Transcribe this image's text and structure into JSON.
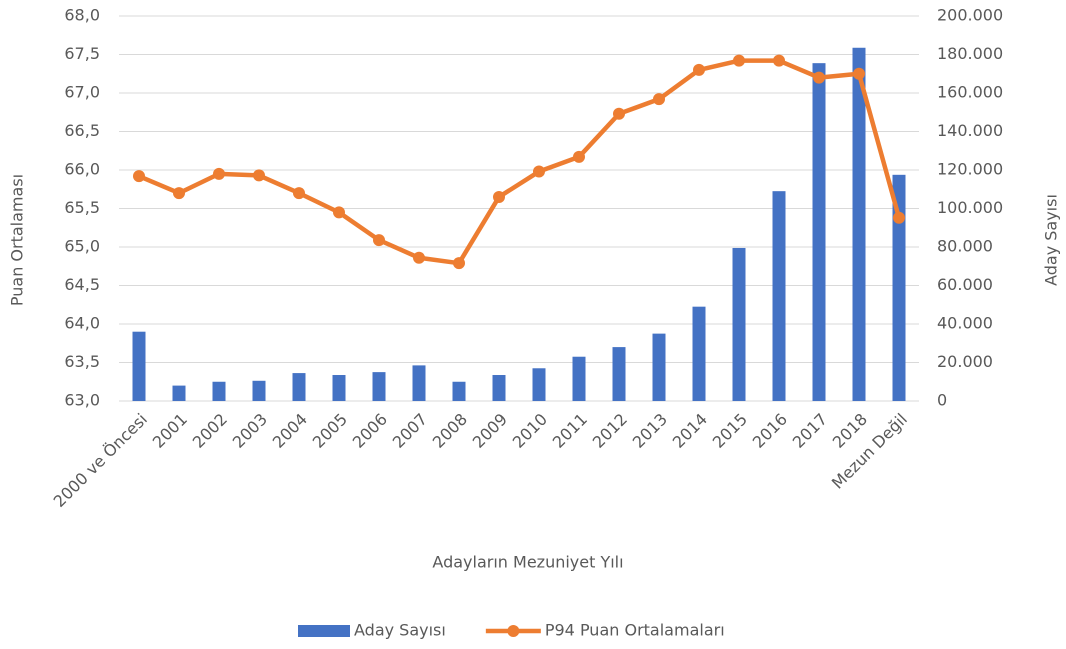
{
  "chart_data": {
    "type": "combo",
    "x_label": "Adayların Mezuniyet Yılı",
    "y_label": "Puan Ortalaması",
    "y2_label": "Aday Sayısı",
    "categories": [
      "2000 ve Öncesi",
      "2001",
      "2002",
      "2003",
      "2004",
      "2005",
      "2006",
      "2007",
      "2008",
      "2009",
      "2010",
      "2011",
      "2012",
      "2013",
      "2014",
      "2015",
      "2016",
      "2017",
      "2018",
      "Mezun Değil"
    ],
    "series": [
      {
        "name": "Aday Sayısı",
        "type": "bar",
        "axis": "y2",
        "color": "#4472c4",
        "values": [
          36000,
          8000,
          10000,
          10500,
          14500,
          13500,
          15000,
          18500,
          10000,
          13500,
          17000,
          23000,
          28000,
          35000,
          49000,
          79500,
          109000,
          175500,
          183500,
          117500
        ]
      },
      {
        "name": "P94 Puan Ortalamaları",
        "type": "line",
        "axis": "y",
        "color": "#ed7d31",
        "values": [
          65.92,
          65.7,
          65.95,
          65.93,
          65.7,
          65.45,
          65.09,
          64.86,
          64.79,
          65.65,
          65.98,
          66.17,
          66.73,
          66.92,
          67.3,
          67.42,
          67.42,
          67.2,
          67.25,
          65.38
        ]
      }
    ],
    "ylim": [
      63,
      68
    ],
    "yticks": [
      {
        "value": 63,
        "label": "63,0"
      },
      {
        "value": 63.5,
        "label": "63,5"
      },
      {
        "value": 64,
        "label": "64,0"
      },
      {
        "value": 64.5,
        "label": "64,5"
      },
      {
        "value": 65,
        "label": "65,0"
      },
      {
        "value": 65.5,
        "label": "65,5"
      },
      {
        "value": 66,
        "label": "66,0"
      },
      {
        "value": 66.5,
        "label": "66,5"
      },
      {
        "value": 67,
        "label": "67,0"
      },
      {
        "value": 67.5,
        "label": "67,5"
      },
      {
        "value": 68,
        "label": "68,0"
      }
    ],
    "y2lim": [
      0,
      200000
    ],
    "y2ticks": [
      0,
      {
        "value": 20000,
        "label": "20.000"
      },
      {
        "value": 40000,
        "label": "40.000"
      },
      {
        "value": 60000,
        "label": "60.000"
      },
      {
        "value": 80000,
        "label": "80.000"
      },
      {
        "value": 100000,
        "label": "100.000"
      },
      {
        "value": 120000,
        "label": "120.000"
      },
      {
        "value": 140000,
        "label": "140.000"
      },
      {
        "value": 160000,
        "label": "160.000"
      },
      {
        "value": 180000,
        "label": "180.000"
      },
      {
        "value": 200000,
        "label": "200.000"
      }
    ],
    "grid": true,
    "legend": "bottom"
  }
}
